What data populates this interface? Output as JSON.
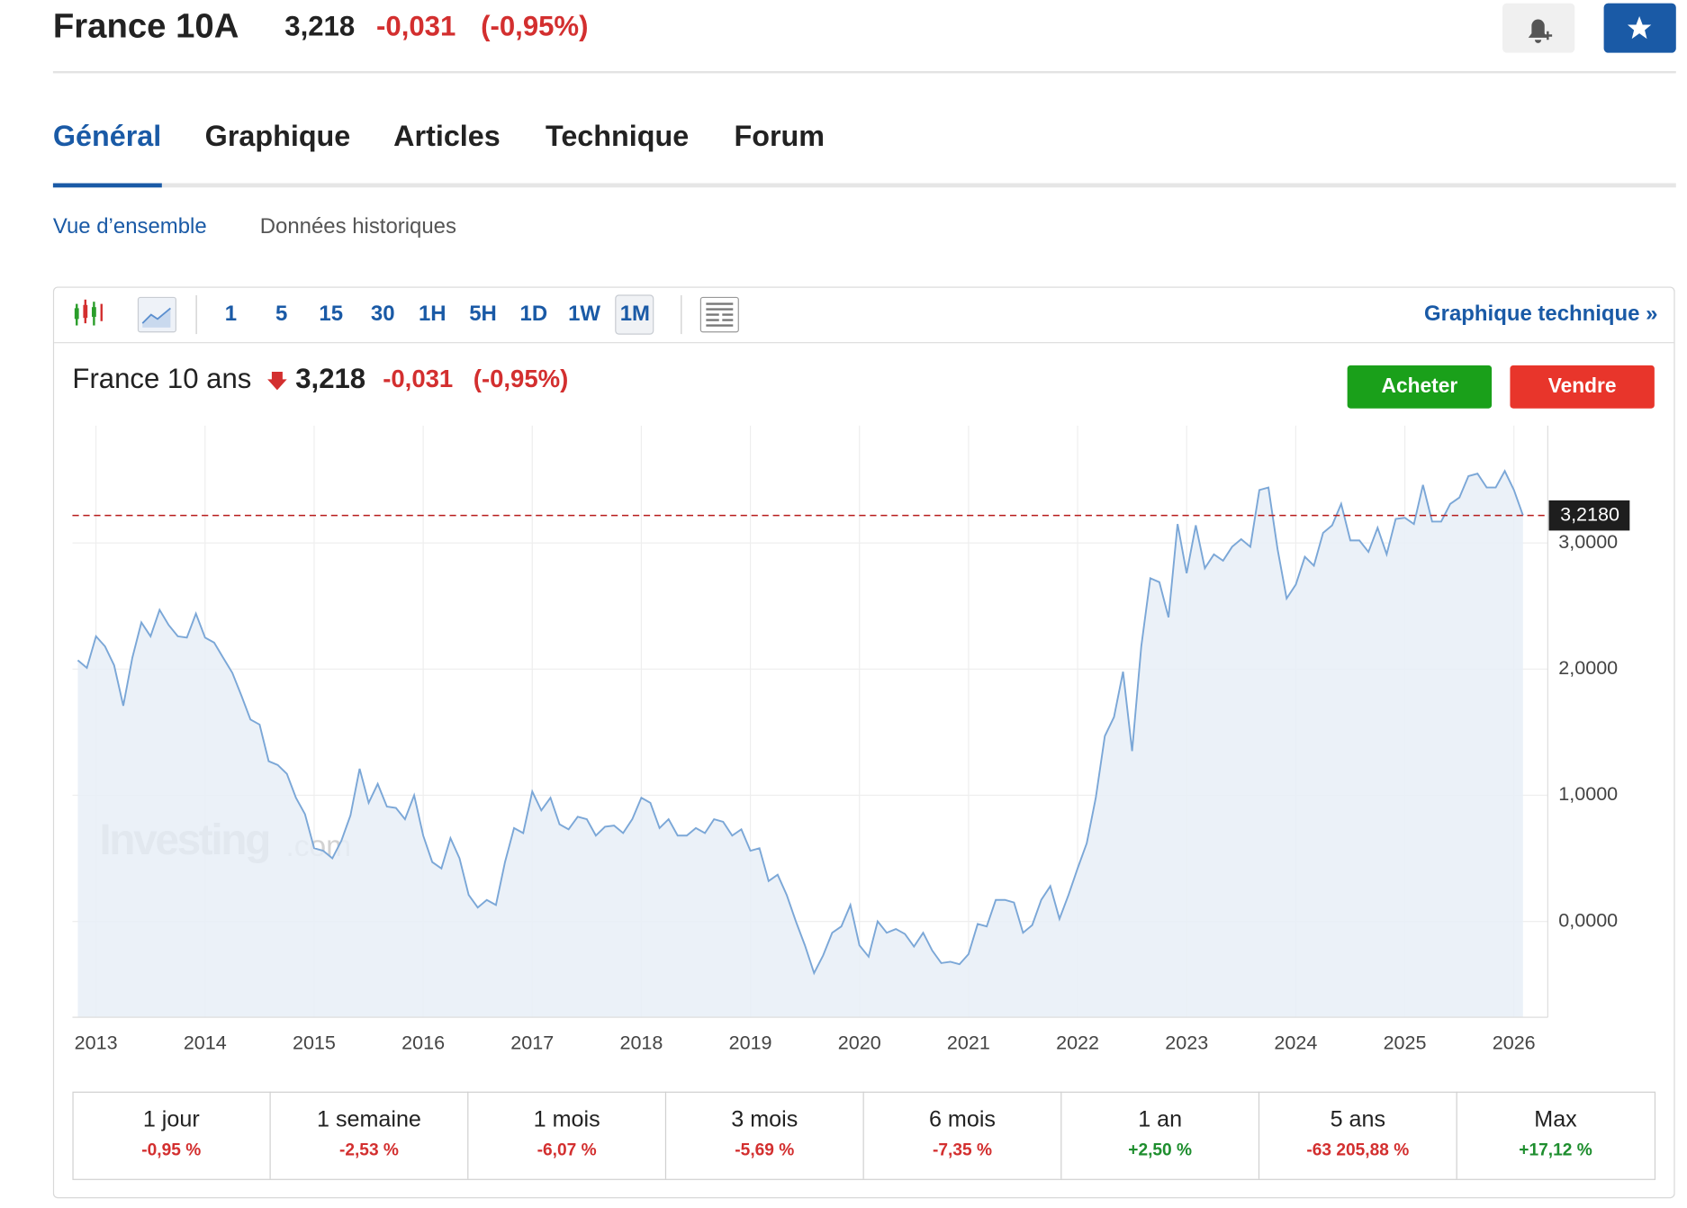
{
  "header": {
    "name": "France 10A",
    "price": "3,218",
    "change": "-0,031",
    "change_pct": "(-0,95%)"
  },
  "tabs": [
    "Général",
    "Graphique",
    "Articles",
    "Technique",
    "Forum"
  ],
  "subtabs": [
    "Vue d’ensemble",
    "Données historiques"
  ],
  "toolbar": {
    "intervals": [
      "1",
      "5",
      "15",
      "30",
      "1H",
      "5H",
      "1D",
      "1W",
      "1M"
    ],
    "link": "Graphique technique »"
  },
  "quote": {
    "name": "France 10 ans",
    "price": "3,218",
    "change": "-0,031",
    "change_pct": "(-0,95%)"
  },
  "buttons": [
    "Acheter",
    "Vendre"
  ],
  "watermark": [
    "Investing",
    ".com"
  ],
  "chart_data": {
    "type": "line",
    "color": "#7ba7d7",
    "area_color": "#e8eef7",
    "categories": [
      null,
      null,
      "2013",
      null,
      null,
      null,
      null,
      null,
      null,
      null,
      null,
      null,
      null,
      null,
      "2014",
      null,
      null,
      null,
      null,
      null,
      null,
      null,
      null,
      null,
      null,
      null,
      "2015",
      null,
      null,
      null,
      null,
      null,
      null,
      null,
      null,
      null,
      null,
      null,
      "2016",
      null,
      null,
      null,
      null,
      null,
      null,
      null,
      null,
      null,
      null,
      null,
      "2017",
      null,
      null,
      null,
      null,
      null,
      null,
      null,
      null,
      null,
      null,
      null,
      "2018",
      null,
      null,
      null,
      null,
      null,
      null,
      null,
      null,
      null,
      null,
      null,
      "2019",
      null,
      null,
      null,
      null,
      null,
      null,
      null,
      null,
      null,
      null,
      null,
      "2020",
      null,
      null,
      null,
      null,
      null,
      null,
      null,
      null,
      null,
      null,
      null,
      "2021",
      null,
      null,
      null,
      null,
      null,
      null,
      null,
      null,
      null,
      null,
      null,
      "2022",
      null,
      null,
      null,
      null,
      null,
      null,
      null,
      null,
      null,
      null,
      null,
      "2023",
      null,
      null,
      null,
      null,
      null,
      null,
      null,
      null,
      null,
      null,
      null,
      "2024",
      null,
      null,
      null,
      null,
      null,
      null,
      null,
      null,
      null,
      null,
      null,
      "2025",
      null,
      null,
      null,
      null,
      null,
      null,
      null,
      null,
      null,
      null,
      null,
      "2026",
      null
    ],
    "values": [
      2.07,
      2.01,
      2.26,
      2.18,
      2.03,
      1.71,
      2.09,
      2.37,
      2.26,
      2.47,
      2.35,
      2.26,
      2.25,
      2.44,
      2.25,
      2.21,
      2.09,
      1.97,
      1.79,
      1.6,
      1.56,
      1.27,
      1.24,
      1.17,
      0.98,
      0.85,
      0.58,
      0.56,
      0.5,
      0.64,
      0.84,
      1.21,
      0.94,
      1.09,
      0.91,
      0.9,
      0.81,
      1.0,
      0.68,
      0.47,
      0.42,
      0.66,
      0.5,
      0.21,
      0.11,
      0.17,
      0.13,
      0.47,
      0.74,
      0.7,
      1.03,
      0.88,
      0.98,
      0.77,
      0.73,
      0.83,
      0.81,
      0.68,
      0.75,
      0.76,
      0.7,
      0.81,
      0.98,
      0.94,
      0.74,
      0.81,
      0.68,
      0.68,
      0.74,
      0.7,
      0.81,
      0.79,
      0.68,
      0.73,
      0.56,
      0.58,
      0.32,
      0.37,
      0.21,
      0,
      -0.19,
      -0.41,
      -0.27,
      -0.09,
      -0.04,
      0.13,
      -0.19,
      -0.28,
      0,
      -0.09,
      -0.06,
      -0.1,
      -0.2,
      -0.09,
      -0.23,
      -0.33,
      -0.32,
      -0.34,
      -0.26,
      -0.02,
      -0.04,
      0.17,
      0.17,
      0.15,
      -0.09,
      -0.03,
      0.17,
      0.28,
      0.02,
      0.21,
      0.42,
      0.62,
      0.98,
      1.47,
      1.62,
      1.98,
      1.35,
      2.18,
      2.72,
      2.69,
      2.41,
      3.15,
      2.76,
      3.14,
      2.8,
      2.91,
      2.86,
      2.97,
      3.03,
      2.97,
      3.42,
      3.44,
      2.95,
      2.56,
      2.67,
      2.89,
      2.82,
      3.08,
      3.14,
      3.31,
      3.02,
      3.02,
      2.93,
      3.12,
      2.91,
      3.19,
      3.2,
      3.15,
      3.46,
      3.17,
      3.17,
      3.31,
      3.36,
      3.53,
      3.55,
      3.44,
      3.44,
      3.57,
      3.42,
      3.218
    ],
    "ylim": [
      -0.76,
      3.93
    ],
    "yticks": [
      {
        "value": 0,
        "label": "0,0000"
      },
      {
        "value": 1,
        "label": "1,0000"
      },
      {
        "value": 2,
        "label": "2,0000"
      },
      {
        "value": 3,
        "label": "3,0000"
      }
    ],
    "grid": true,
    "reference_line": {
      "value": 3.218,
      "label": "3,2180",
      "color": "#b71c1c"
    }
  },
  "performance": [
    {
      "period": "1 jour",
      "change": "-0,95 %"
    },
    {
      "period": "1 semaine",
      "change": "-2,53 %"
    },
    {
      "period": "1 mois",
      "change": "-6,07 %"
    },
    {
      "period": "3 mois",
      "change": "-5,69 %"
    },
    {
      "period": "6 mois",
      "change": "-7,35 %"
    },
    {
      "period": "1 an",
      "change": "+2,50 %"
    },
    {
      "period": "5 ans",
      "change": "-63 205,88 %"
    },
    {
      "period": "Max",
      "change": "+17,12 %"
    }
  ]
}
